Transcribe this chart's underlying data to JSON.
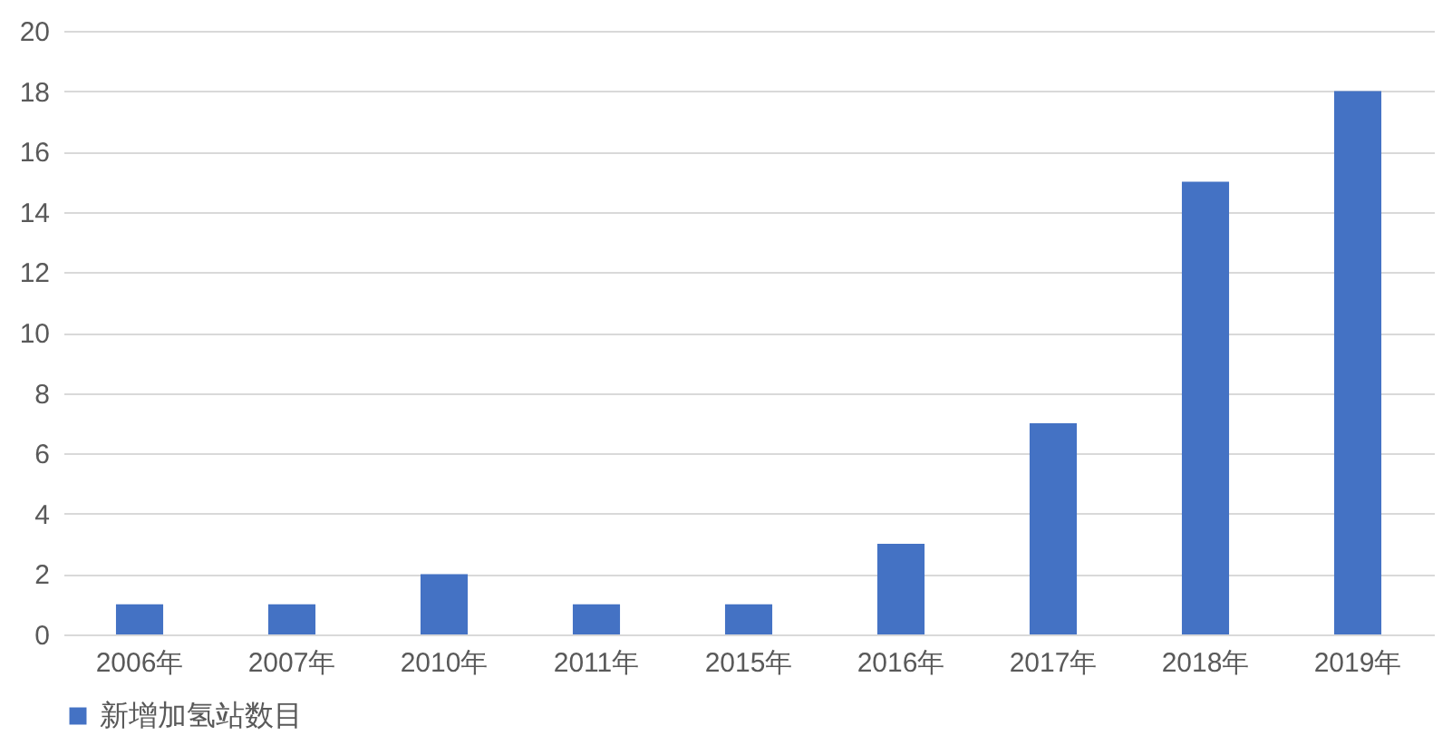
{
  "chart_data": {
    "type": "bar",
    "categories": [
      "2006年",
      "2007年",
      "2010年",
      "2011年",
      "2015年",
      "2016年",
      "2017年",
      "2018年",
      "2019年"
    ],
    "series": [
      {
        "name": "新增加氢站数目",
        "color": "#4472c4",
        "values": [
          1,
          1,
          2,
          1,
          1,
          3,
          7,
          15,
          18
        ]
      }
    ],
    "ylim": [
      0,
      20
    ],
    "yticks": [
      0,
      2,
      4,
      6,
      8,
      10,
      12,
      14,
      16,
      18,
      20
    ],
    "grid": "y",
    "legend": "bottom"
  }
}
